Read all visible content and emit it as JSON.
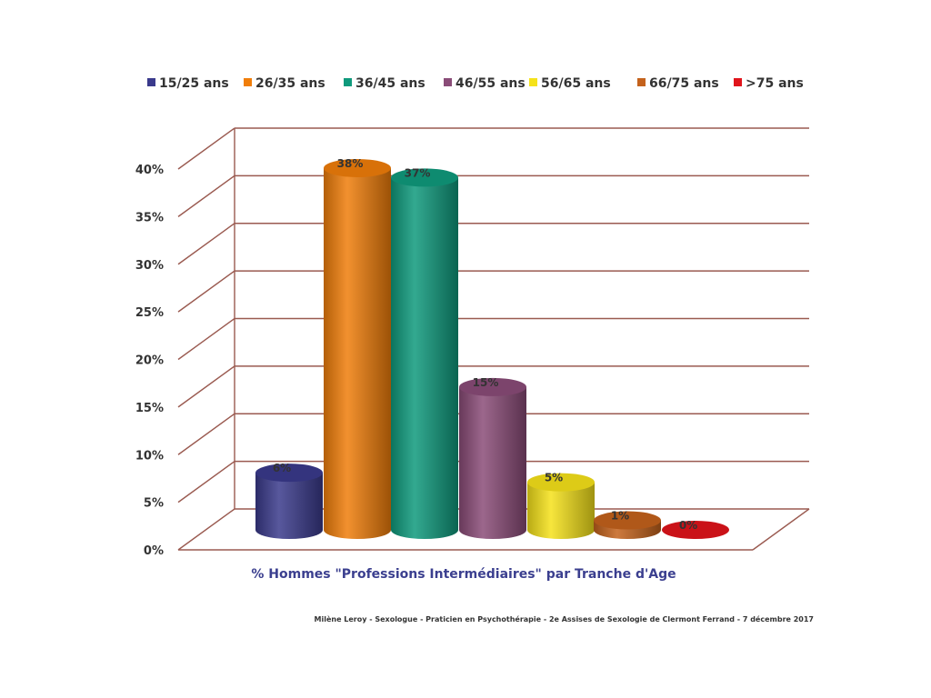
{
  "chart_data": {
    "type": "bar",
    "title": "",
    "xlabel": "% Hommes \"Professions Intermédiaires\" par Tranche d'Age",
    "ylabel": "",
    "ylim": [
      0,
      40
    ],
    "y_ticks": [
      "0%",
      "5%",
      "10%",
      "15%",
      "20%",
      "25%",
      "30%",
      "35%",
      "40%"
    ],
    "y_tick_values": [
      0,
      5,
      10,
      15,
      20,
      25,
      30,
      35,
      40
    ],
    "grid": true,
    "legend": "top",
    "series": [
      {
        "name": "15/25 ans",
        "value": 6,
        "label": "6%",
        "color": "#3a3a8c"
      },
      {
        "name": "26/35 ans",
        "value": 38,
        "label": "38%",
        "color": "#f07e0a"
      },
      {
        "name": "36/45 ans",
        "value": 37,
        "label": "37%",
        "color": "#0f9a7c"
      },
      {
        "name": "46/55 ans",
        "value": 15,
        "label": "15%",
        "color": "#8a4c78"
      },
      {
        "name": "56/65 ans",
        "value": 5,
        "label": "5%",
        "color": "#f5e21a"
      },
      {
        "name": "66/75 ans",
        "value": 1,
        "label": "1%",
        "color": "#c4621c"
      },
      {
        "name": ">75 ans",
        "value": 0,
        "label": "0%",
        "color": "#e0141b"
      }
    ]
  },
  "footer": {
    "credit": "Milène Leroy - Sexologue - Praticien en Psychothérapie - 2e Assises de Sexologie de Clermont Ferrand - 7 décembre 2017"
  }
}
